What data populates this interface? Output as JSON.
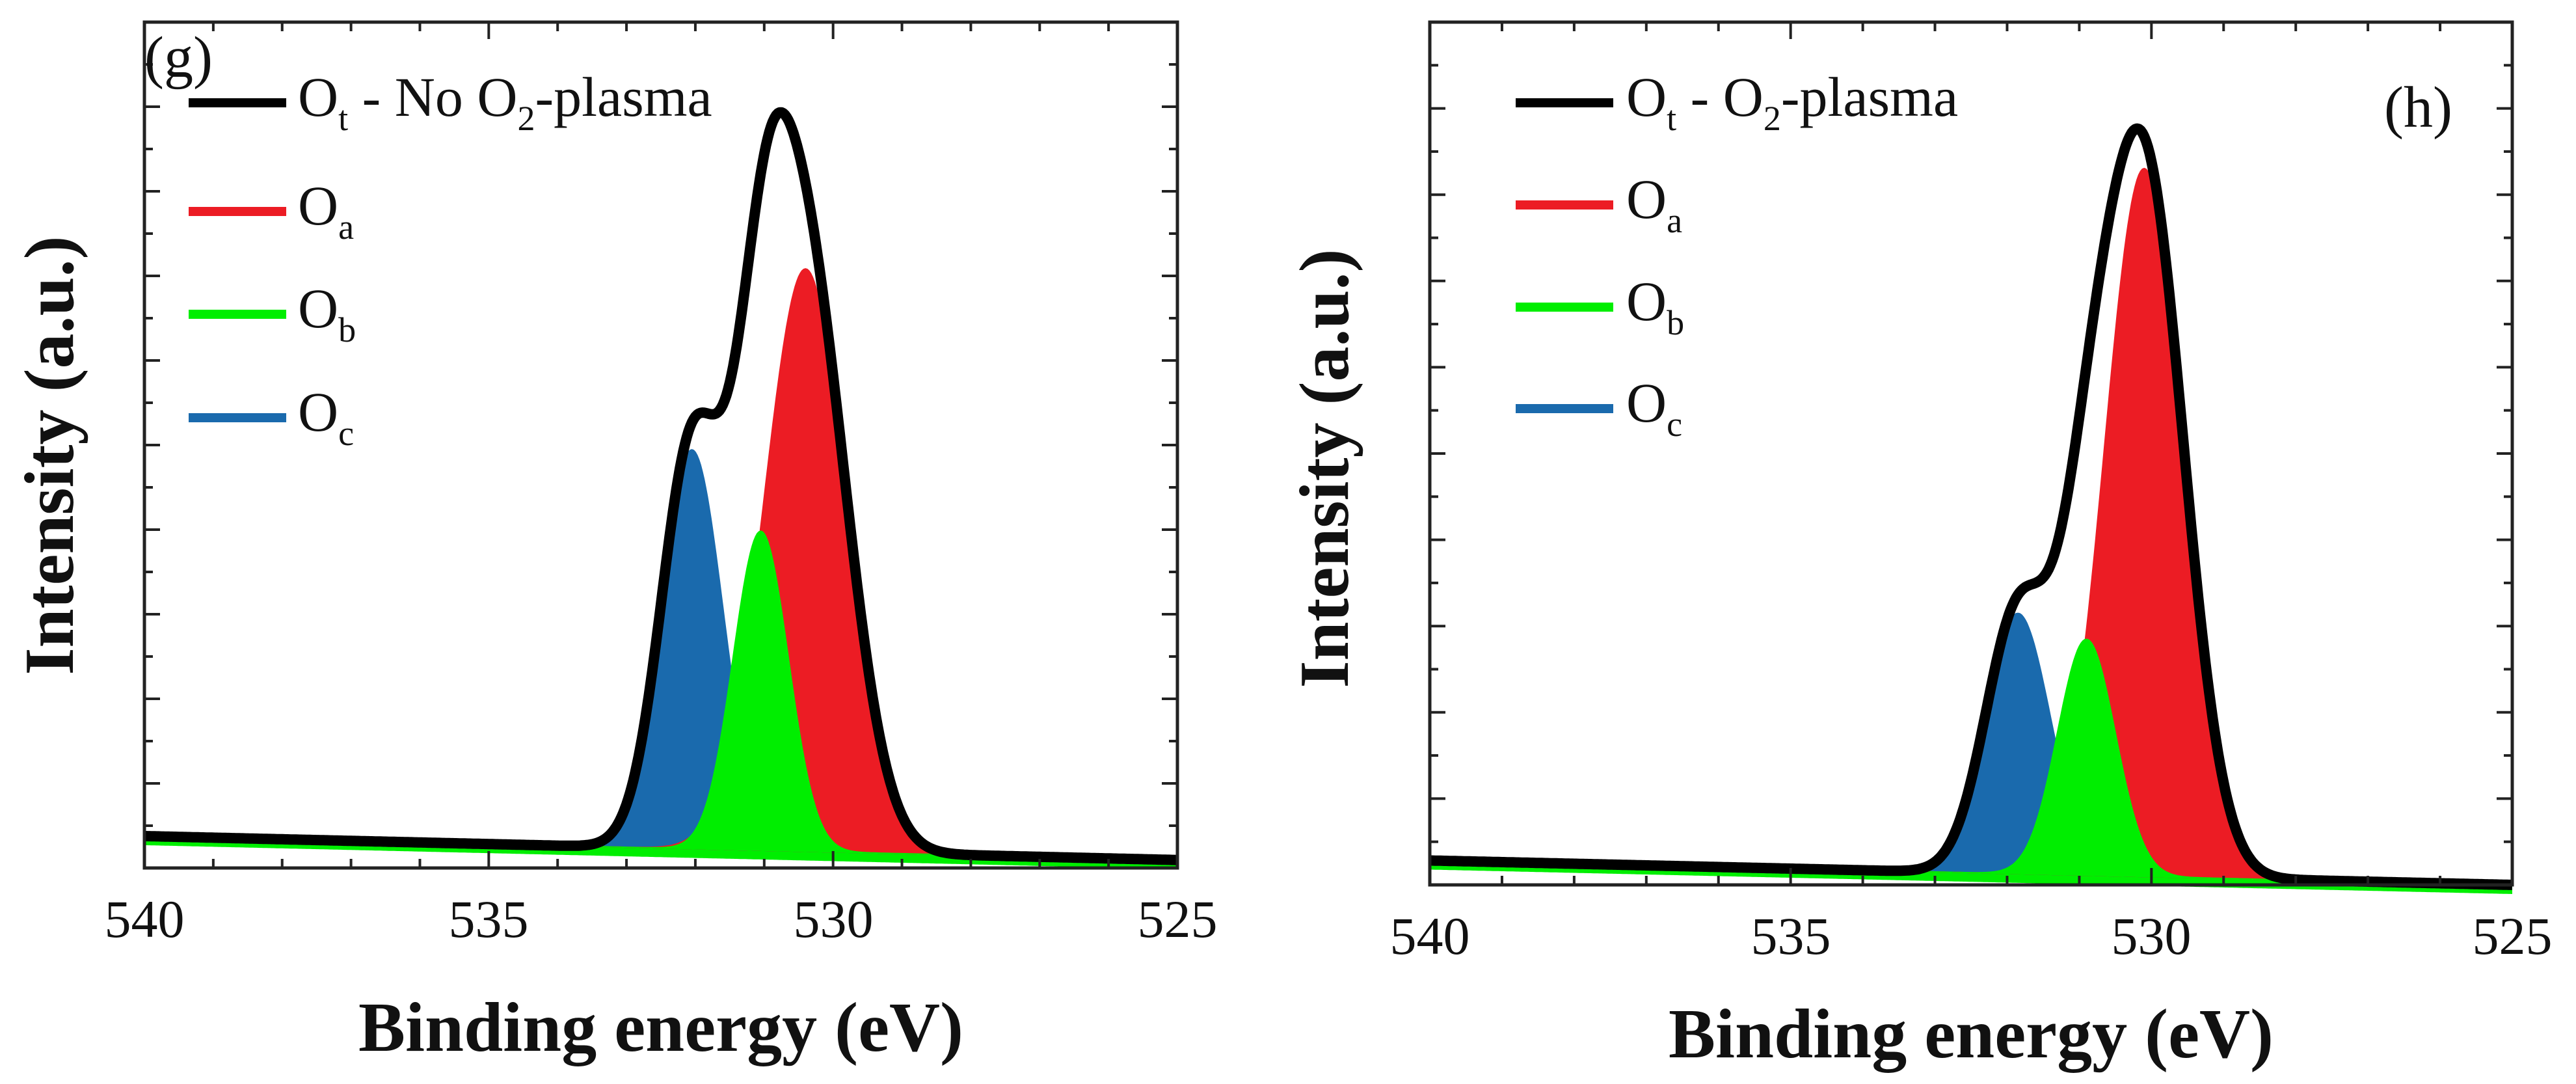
{
  "figure": {
    "colors": {
      "Ot": "#000000",
      "Oa": "#ec1c24",
      "Ob": "#00ee00",
      "Oc": "#1a6aad",
      "axis": "#222222"
    }
  },
  "chart_data": [
    {
      "type": "area",
      "panel_label": "(g)",
      "xlabel": "Binding energy (eV)",
      "ylabel": "Intensity (a.u.)",
      "xlim": [
        540,
        525
      ],
      "x_ticks": [
        "540",
        "535",
        "530",
        "525"
      ],
      "ylim": [
        0,
        1.06
      ],
      "legend_position": "top-left",
      "legend": [
        {
          "main": "O",
          "sub": "t",
          "suffix": " - No O",
          "suffix_sub": "2",
          "suffix_tail": "-plasma"
        },
        {
          "main": "O",
          "sub": "a"
        },
        {
          "main": "O",
          "sub": "b"
        },
        {
          "main": "O",
          "sub": "c"
        }
      ],
      "baseline": {
        "start": 0.04,
        "end": 0.01
      },
      "series": [
        {
          "name": "Ot - No O2-plasma",
          "kind": "envelope",
          "color": "#000000"
        },
        {
          "name": "Oa",
          "center": 530.4,
          "height": 0.73,
          "width": 0.6,
          "color": "#ec1c24"
        },
        {
          "name": "Ob",
          "center": 531.05,
          "height": 0.4,
          "width": 0.4,
          "color": "#00ee00"
        },
        {
          "name": "Oc",
          "center": 532.05,
          "height": 0.5,
          "width": 0.45,
          "color": "#1a6aad"
        }
      ]
    },
    {
      "type": "area",
      "panel_label": "(h)",
      "xlabel": "Binding energy (eV)",
      "ylabel": "Intensity (a.u.)",
      "xlim": [
        540,
        525
      ],
      "x_ticks": [
        "540",
        "535",
        "530",
        "525"
      ],
      "ylim": [
        0,
        1.06
      ],
      "legend_position": "top-left",
      "legend": [
        {
          "main": "O",
          "sub": "t",
          "suffix": " - O",
          "suffix_sub": "2",
          "suffix_tail": "-plasma"
        },
        {
          "main": "O",
          "sub": "a"
        },
        {
          "main": "O",
          "sub": "b"
        },
        {
          "main": "O",
          "sub": "c"
        }
      ],
      "baseline": {
        "start": 0.03,
        "end": 0.0
      },
      "series": [
        {
          "name": "Ot - O2-plasma",
          "kind": "envelope",
          "color": "#000000"
        },
        {
          "name": "Oa",
          "center": 530.1,
          "height": 0.87,
          "width": 0.55,
          "color": "#ec1c24"
        },
        {
          "name": "Ob",
          "center": 530.9,
          "height": 0.29,
          "width": 0.4,
          "color": "#00ee00"
        },
        {
          "name": "Oc",
          "center": 531.85,
          "height": 0.32,
          "width": 0.45,
          "color": "#1a6aad"
        }
      ]
    }
  ]
}
